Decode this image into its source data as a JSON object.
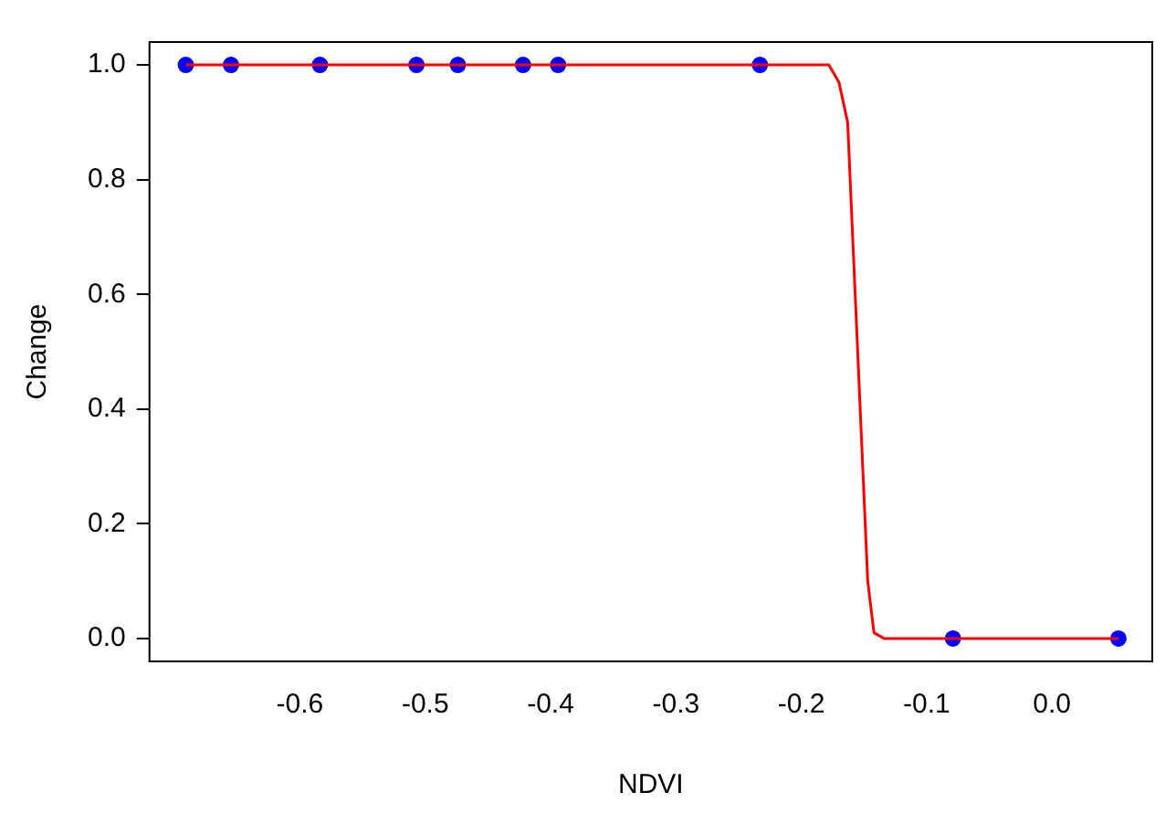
{
  "chart_data": {
    "type": "scatter",
    "xlabel": "NDVI",
    "ylabel": "Change",
    "xlim": [
      -0.72,
      0.08
    ],
    "ylim": [
      -0.04,
      1.04
    ],
    "xticks": [
      -0.6,
      -0.5,
      -0.4,
      -0.3,
      -0.2,
      -0.1,
      {
        "value": 0,
        "label": "0.0"
      }
    ],
    "yticks": [
      {
        "value": 0,
        "label": "0.0"
      },
      0.2,
      0.4,
      0.6,
      0.8,
      {
        "value": 1,
        "label": "1.0"
      }
    ],
    "grid": false,
    "legend": false,
    "series": [
      {
        "color": "#0000ff",
        "marker": "circle",
        "x": [
          -0.691,
          -0.655,
          -0.584,
          -0.507,
          -0.474,
          -0.422,
          -0.394,
          -0.233,
          -0.079,
          0.053
        ],
        "values": [
          1,
          1,
          1,
          1,
          1,
          1,
          1,
          1,
          0,
          0
        ]
      },
      {
        "type": "line",
        "color": "#ff0000",
        "marker": "none",
        "line_style": "solid",
        "x": [
          -0.691,
          -0.178,
          -0.17,
          -0.163,
          -0.155,
          -0.147,
          -0.142,
          -0.134,
          0.053
        ],
        "values": [
          1,
          1,
          0.97,
          0.9,
          0.5,
          0.1,
          0.01,
          0,
          0
        ]
      }
    ]
  }
}
